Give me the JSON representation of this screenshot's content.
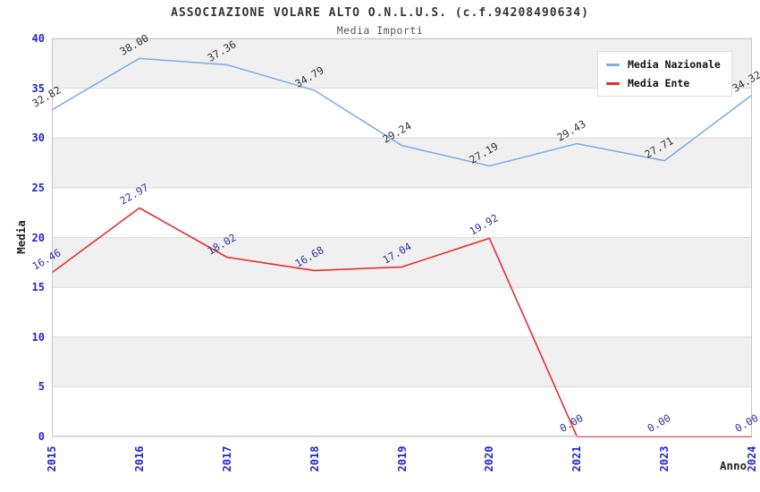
{
  "header": {
    "title": "ASSOCIAZIONE VOLARE ALTO O.N.L.U.S. (c.f.94208490634)",
    "subtitle": "Media Importi"
  },
  "chart_data": {
    "type": "line",
    "title": "ASSOCIAZIONE VOLARE ALTO O.N.L.U.S. (c.f.94208490634)",
    "subtitle": "Media Importi",
    "xlabel": "Anno",
    "ylabel": "Media",
    "ylim": [
      0,
      40
    ],
    "ytick_step": 5,
    "grid": "horizontal-bands-alternating",
    "legend_position": "top-right",
    "categories": [
      "2015",
      "2016",
      "2017",
      "2018",
      "2019",
      "2020",
      "2021",
      "2023",
      "2024"
    ],
    "series": [
      {
        "name": "Media Nazionale",
        "color": "#7fb0e4",
        "label_color": "#333333",
        "values": [
          32.82,
          38.0,
          37.36,
          34.79,
          29.24,
          27.19,
          29.43,
          27.71,
          34.32
        ]
      },
      {
        "name": "Media Ente",
        "color": "#e62e2e",
        "label_color": "#3333a0",
        "values": [
          16.46,
          22.97,
          18.02,
          16.68,
          17.04,
          19.92,
          0.0,
          0.0,
          0.0
        ]
      }
    ],
    "colors": {
      "background": "#ffffff",
      "band": "#f0f0f0",
      "grid": "#d8d8d8",
      "border": "#c6c6c6",
      "tick_labels": "#2424cd",
      "title": "#333333",
      "subtitle": "#555555",
      "axis_titles": "#222222",
      "legend_border": "#dcdcdc"
    }
  }
}
